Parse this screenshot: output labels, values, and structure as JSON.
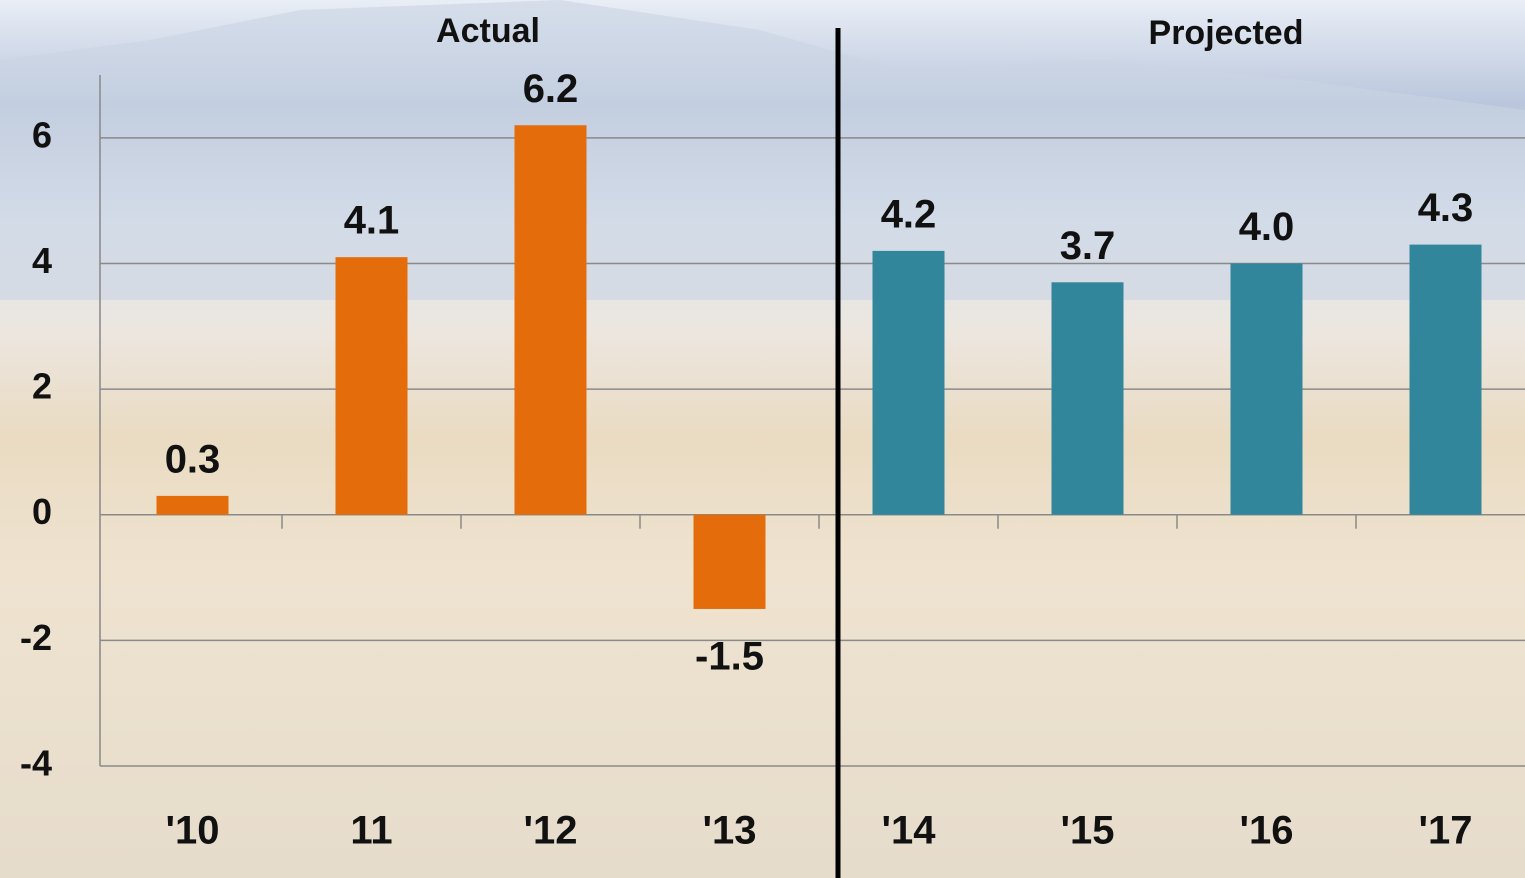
{
  "chart_data": {
    "type": "bar",
    "categories": [
      "'10",
      "11",
      "'12",
      "'13",
      "'14",
      "'15",
      "'16",
      "'17"
    ],
    "values": [
      0.3,
      4.1,
      6.2,
      -1.5,
      4.2,
      3.7,
      4.0,
      4.3
    ],
    "value_labels": [
      "0.3",
      "4.1",
      "6.2",
      "-1.5",
      "4.2",
      "3.7",
      "4.0",
      "4.3"
    ],
    "colors": [
      "#e46c0a",
      "#e46c0a",
      "#e46c0a",
      "#e46c0a",
      "#31869b",
      "#31869b",
      "#31869b",
      "#31869b"
    ],
    "annotations": [
      "Actual",
      "Projected"
    ],
    "ylim": [
      -4,
      7
    ],
    "yticks": [
      -4,
      -2,
      0,
      2,
      4,
      6
    ],
    "grid": true
  }
}
